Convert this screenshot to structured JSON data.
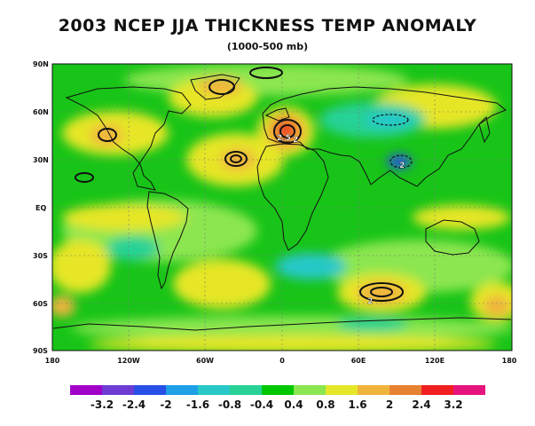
{
  "title": "2003 NCEP JJA THICKNESS TEMP ANOMALY",
  "subtitle": "(1000-500 mb)",
  "axes": {
    "lat_labels": [
      "90N",
      "60N",
      "30N",
      "EQ",
      "30S",
      "60S",
      "90S"
    ],
    "lon_labels": [
      "180",
      "120W",
      "60W",
      "0",
      "60E",
      "120E",
      "180"
    ]
  },
  "contour_labels": [
    "2.5",
    "2",
    "2",
    "2"
  ],
  "legend": {
    "labels": [
      "-3.2",
      "-2.4",
      "-2",
      "-1.6",
      "-0.8",
      "-0.4",
      "0.4",
      "0.8",
      "1.6",
      "2",
      "2.4",
      "3.2"
    ],
    "colors": [
      "#a000c8",
      "#6e3cd2",
      "#2850e6",
      "#1ea0e6",
      "#28c8c8",
      "#28d296",
      "#00c800",
      "#8ce650",
      "#e6e628",
      "#f0b43c",
      "#e68232",
      "#f01e1e",
      "#e6147d"
    ]
  }
}
